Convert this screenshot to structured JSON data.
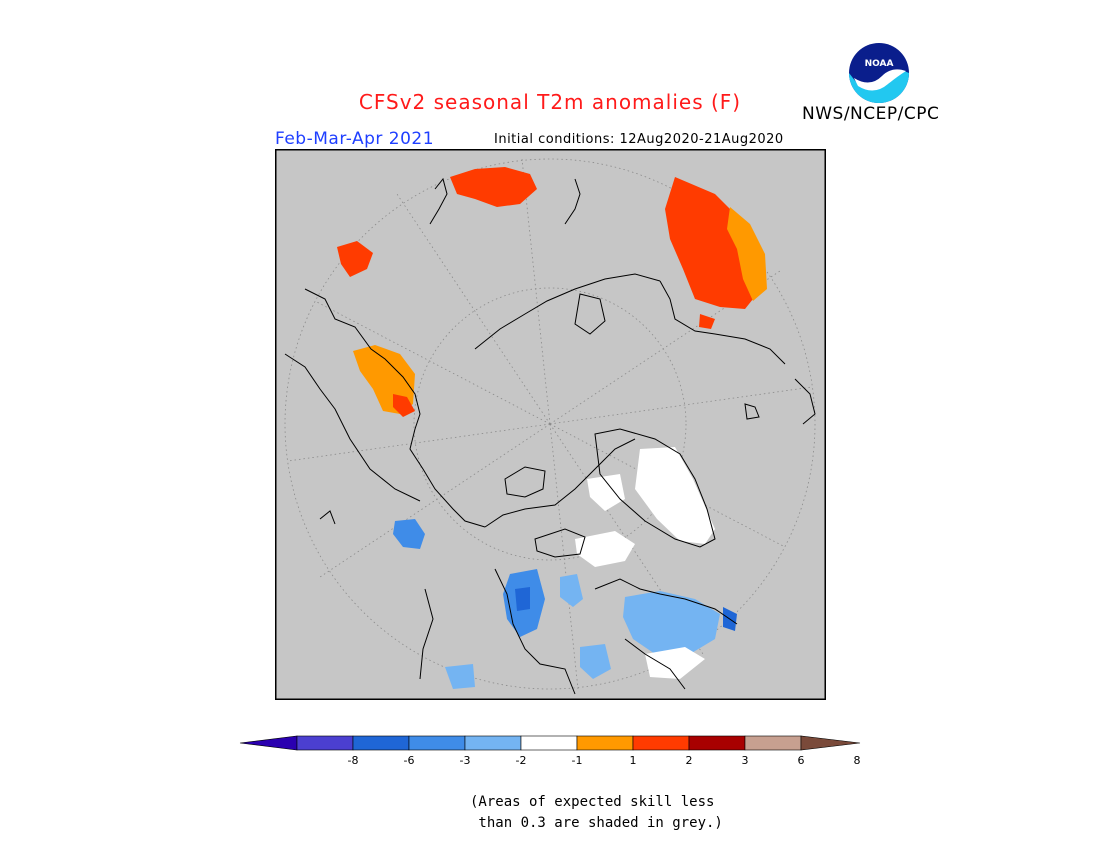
{
  "header": {
    "title": "CFSv2 seasonal T2m anomalies (F)",
    "season": "Feb-Mar-Apr 2021",
    "initial_conditions": "Initial conditions: 12Aug2020-21Aug2020",
    "agency": "NWS/NCEP/CPC",
    "logo_text": "NOAA"
  },
  "colorbar": {
    "labels": [
      "-8",
      "-6",
      "-3",
      "-2",
      "-1",
      "1",
      "2",
      "3",
      "6",
      "8"
    ],
    "colors": [
      "#2a00b0",
      "#4b3fd0",
      "#1f66d6",
      "#3f8ce8",
      "#74b4f2",
      "#ffffff",
      "#ff9900",
      "#ff3b00",
      "#a80000",
      "#c7a090",
      "#7a4a3a"
    ]
  },
  "note": {
    "line1": "(Areas of expected skill less",
    "line2": " than 0.3 are shaded in grey.)"
  },
  "colors": {
    "mask_grey": "#c6c6c6",
    "coast": "#000000",
    "graticule": "#8a8a8a"
  }
}
